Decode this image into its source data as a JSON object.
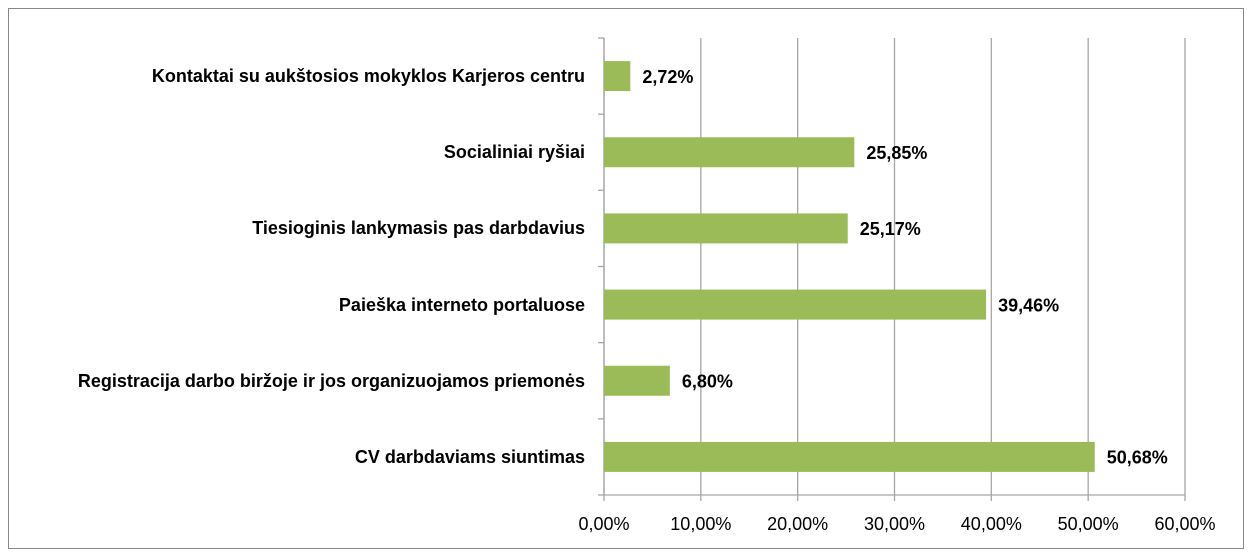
{
  "chart_data": {
    "type": "bar",
    "orientation": "horizontal",
    "categories": [
      "Kontaktai su aukštosios mokyklos Karjeros centru",
      "Socialiniai ryšiai",
      "Tiesioginis lankymasis pas darbdavius",
      "Paieška interneto portaluose",
      "Registracija darbo biržoje ir jos organizuojamos priemonės",
      "CV darbdaviams siuntimas"
    ],
    "values": [
      2.72,
      25.85,
      25.17,
      39.46,
      6.8,
      50.68
    ],
    "value_labels": [
      "2,72%",
      "25,85%",
      "25,17%",
      "39,46%",
      "6,80%",
      "50,68%"
    ],
    "color": "#9bbb59",
    "xlim": [
      0,
      60
    ],
    "xticks": [
      {
        "value": 0,
        "label": "0,00%"
      },
      {
        "value": 10,
        "label": "10,00%"
      },
      {
        "value": 20,
        "label": "20,00%"
      },
      {
        "value": 30,
        "label": "30,00%"
      },
      {
        "value": 40,
        "label": "40,00%"
      },
      {
        "value": 50,
        "label": "50,00%"
      },
      {
        "value": 60,
        "label": "60,00%"
      }
    ],
    "grid": true
  }
}
